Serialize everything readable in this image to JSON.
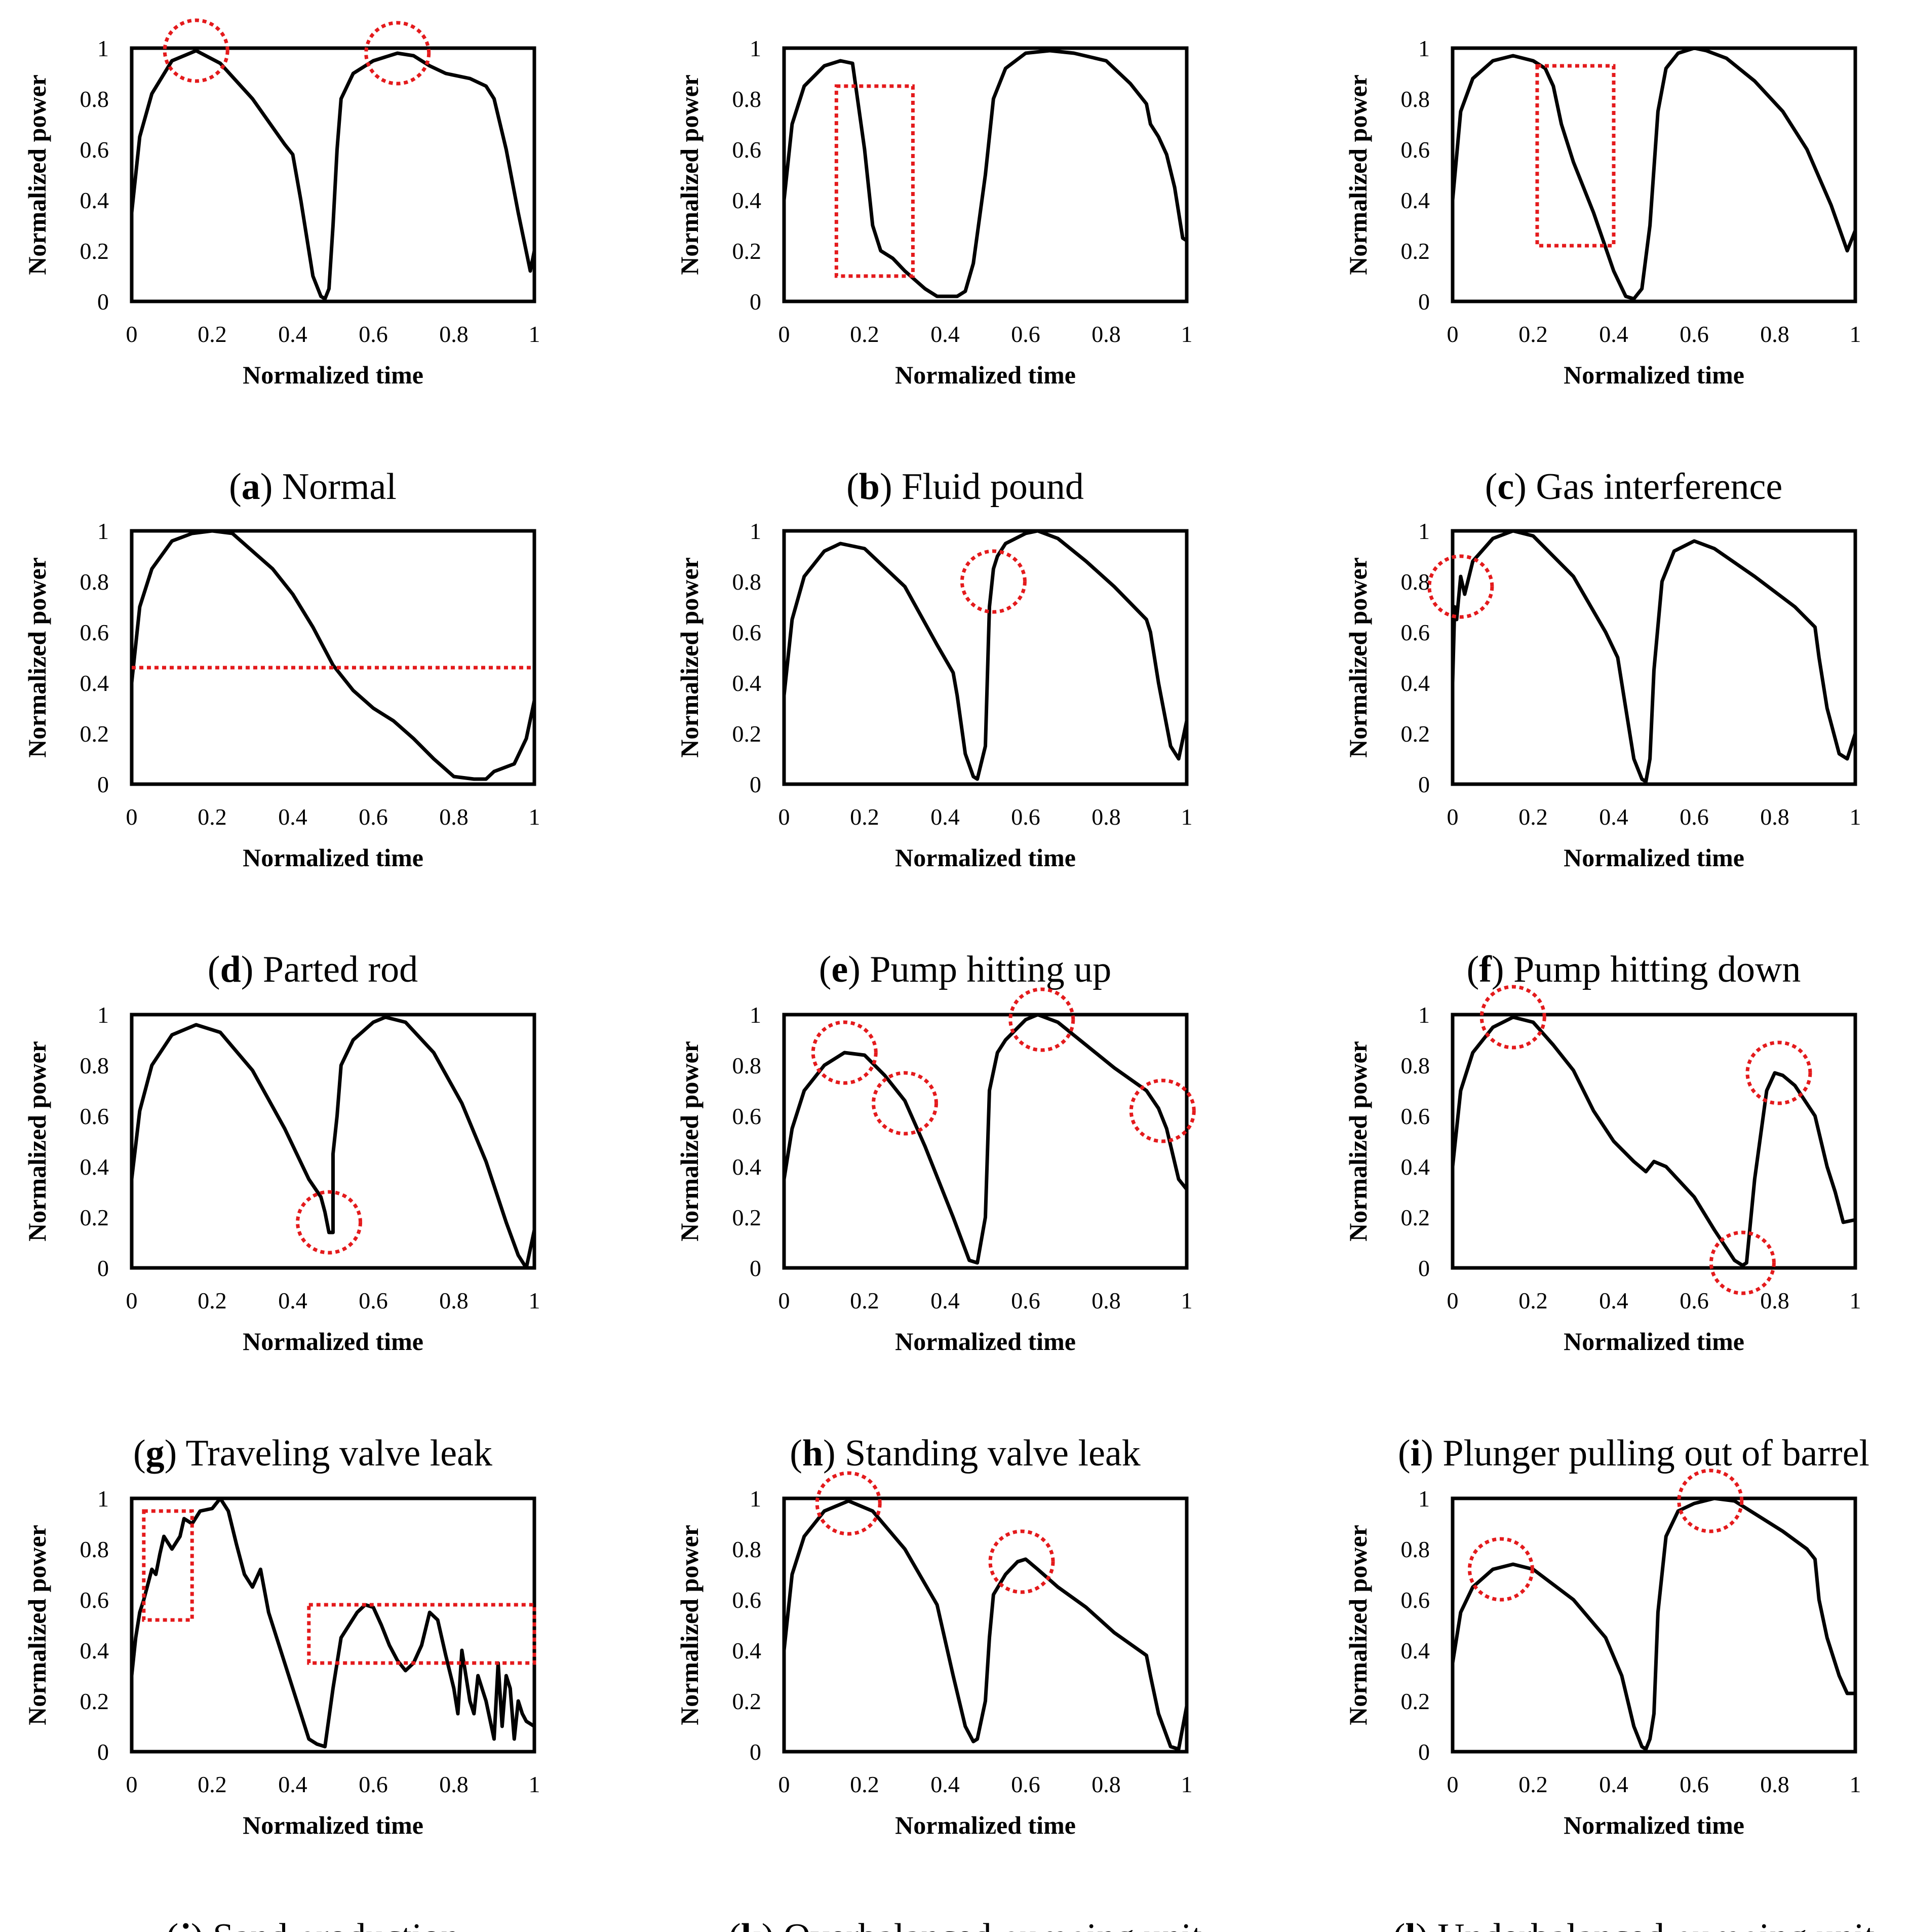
{
  "figure": {
    "x_label": "Normalized time",
    "y_label": "Normalized power",
    "x_ticks": [
      "0",
      "0.2",
      "0.4",
      "0.6",
      "0.8",
      "1"
    ],
    "y_ticks": [
      "0",
      "0.2",
      "0.4",
      "0.6",
      "0.8",
      "1"
    ],
    "line_color": "#000000",
    "highlight_color": "#e41a1c"
  },
  "chart_data": [
    {
      "type": "line",
      "id": "a",
      "caption_letter": "a",
      "caption_text": "Normal",
      "xlabel": "Normalized time",
      "ylabel": "Normalized power",
      "xlim": [
        0,
        1
      ],
      "ylim": [
        0,
        1
      ],
      "x": [
        0,
        0.02,
        0.05,
        0.1,
        0.16,
        0.22,
        0.3,
        0.38,
        0.4,
        0.42,
        0.45,
        0.47,
        0.48,
        0.49,
        0.5,
        0.51,
        0.52,
        0.55,
        0.6,
        0.66,
        0.7,
        0.74,
        0.78,
        0.84,
        0.88,
        0.9,
        0.93,
        0.96,
        0.99,
        1
      ],
      "y": [
        0.35,
        0.65,
        0.82,
        0.95,
        0.99,
        0.94,
        0.8,
        0.62,
        0.58,
        0.4,
        0.1,
        0.02,
        0.01,
        0.05,
        0.3,
        0.6,
        0.8,
        0.9,
        0.95,
        0.98,
        0.97,
        0.93,
        0.9,
        0.88,
        0.85,
        0.8,
        0.6,
        0.35,
        0.12,
        0.2
      ],
      "highlights": [
        {
          "shape": "circle",
          "x": 0.16,
          "y": 0.99
        },
        {
          "shape": "circle",
          "x": 0.66,
          "y": 0.98
        }
      ]
    },
    {
      "type": "line",
      "id": "b",
      "caption_letter": "b",
      "caption_text": "Fluid pound",
      "xlabel": "Normalized time",
      "ylabel": "Normalized power",
      "xlim": [
        0,
        1
      ],
      "ylim": [
        0,
        1
      ],
      "x": [
        0,
        0.02,
        0.05,
        0.1,
        0.14,
        0.17,
        0.2,
        0.22,
        0.24,
        0.27,
        0.3,
        0.35,
        0.38,
        0.4,
        0.43,
        0.45,
        0.47,
        0.5,
        0.52,
        0.55,
        0.6,
        0.66,
        0.72,
        0.8,
        0.86,
        0.9,
        0.91,
        0.93,
        0.95,
        0.97,
        0.99,
        1
      ],
      "y": [
        0.4,
        0.7,
        0.85,
        0.93,
        0.95,
        0.94,
        0.6,
        0.3,
        0.2,
        0.17,
        0.12,
        0.05,
        0.02,
        0.02,
        0.02,
        0.04,
        0.15,
        0.5,
        0.8,
        0.92,
        0.98,
        0.99,
        0.98,
        0.95,
        0.86,
        0.78,
        0.7,
        0.65,
        0.58,
        0.45,
        0.25,
        0.24
      ],
      "highlights": [
        {
          "shape": "rect",
          "x0": 0.13,
          "x1": 0.32,
          "y0": 0.1,
          "y1": 0.85
        }
      ]
    },
    {
      "type": "line",
      "id": "c",
      "caption_letter": "c",
      "caption_text": "Gas interference",
      "xlabel": "Normalized time",
      "ylabel": "Normalized power",
      "xlim": [
        0,
        1
      ],
      "ylim": [
        0,
        1
      ],
      "x": [
        0,
        0.02,
        0.05,
        0.1,
        0.15,
        0.2,
        0.23,
        0.25,
        0.27,
        0.3,
        0.35,
        0.4,
        0.43,
        0.45,
        0.47,
        0.49,
        0.51,
        0.53,
        0.56,
        0.6,
        0.63,
        0.68,
        0.75,
        0.82,
        0.88,
        0.94,
        0.98,
        1
      ],
      "y": [
        0.4,
        0.75,
        0.88,
        0.95,
        0.97,
        0.95,
        0.92,
        0.85,
        0.7,
        0.55,
        0.35,
        0.12,
        0.02,
        0.01,
        0.05,
        0.3,
        0.75,
        0.92,
        0.98,
        1.0,
        0.99,
        0.96,
        0.87,
        0.75,
        0.6,
        0.38,
        0.2,
        0.28
      ],
      "highlights": [
        {
          "shape": "rect",
          "x0": 0.21,
          "x1": 0.4,
          "y0": 0.22,
          "y1": 0.93
        }
      ]
    },
    {
      "type": "line",
      "id": "d",
      "caption_letter": "d",
      "caption_text": "Parted rod",
      "xlabel": "Normalized time",
      "ylabel": "Normalized power",
      "xlim": [
        0,
        1
      ],
      "ylim": [
        0,
        1
      ],
      "x": [
        0,
        0.02,
        0.05,
        0.1,
        0.15,
        0.2,
        0.25,
        0.3,
        0.35,
        0.4,
        0.45,
        0.5,
        0.55,
        0.6,
        0.65,
        0.7,
        0.75,
        0.8,
        0.85,
        0.88,
        0.9,
        0.95,
        0.98,
        1
      ],
      "y": [
        0.4,
        0.7,
        0.85,
        0.96,
        0.99,
        1.0,
        0.99,
        0.92,
        0.85,
        0.75,
        0.62,
        0.47,
        0.37,
        0.3,
        0.25,
        0.18,
        0.1,
        0.03,
        0.02,
        0.02,
        0.05,
        0.08,
        0.18,
        0.33
      ],
      "highlights": [
        {
          "shape": "hline",
          "y": 0.46
        }
      ]
    },
    {
      "type": "line",
      "id": "e",
      "caption_letter": "e",
      "caption_text": "Pump hitting up",
      "xlabel": "Normalized time",
      "ylabel": "Normalized power",
      "xlim": [
        0,
        1
      ],
      "ylim": [
        0,
        1
      ],
      "x": [
        0,
        0.02,
        0.05,
        0.1,
        0.14,
        0.2,
        0.3,
        0.38,
        0.42,
        0.43,
        0.45,
        0.47,
        0.48,
        0.5,
        0.51,
        0.52,
        0.53,
        0.55,
        0.6,
        0.63,
        0.68,
        0.75,
        0.82,
        0.9,
        0.91,
        0.93,
        0.96,
        0.98,
        1
      ],
      "y": [
        0.35,
        0.65,
        0.82,
        0.92,
        0.95,
        0.93,
        0.78,
        0.55,
        0.44,
        0.35,
        0.12,
        0.03,
        0.02,
        0.15,
        0.7,
        0.85,
        0.9,
        0.95,
        0.99,
        1.0,
        0.97,
        0.88,
        0.78,
        0.65,
        0.6,
        0.4,
        0.15,
        0.1,
        0.25
      ],
      "highlights": [
        {
          "shape": "circle",
          "x": 0.52,
          "y": 0.8
        }
      ]
    },
    {
      "type": "line",
      "id": "f",
      "caption_letter": "f",
      "caption_text": "Pump hitting down",
      "xlabel": "Normalized time",
      "ylabel": "Normalized power",
      "xlim": [
        0,
        1
      ],
      "ylim": [
        0,
        1
      ],
      "x": [
        0,
        0.005,
        0.01,
        0.02,
        0.03,
        0.05,
        0.1,
        0.15,
        0.2,
        0.3,
        0.38,
        0.41,
        0.43,
        0.45,
        0.47,
        0.48,
        0.49,
        0.5,
        0.52,
        0.55,
        0.6,
        0.65,
        0.75,
        0.85,
        0.9,
        0.91,
        0.93,
        0.96,
        0.98,
        1
      ],
      "y": [
        0.4,
        0.7,
        0.65,
        0.82,
        0.75,
        0.88,
        0.97,
        1.0,
        0.98,
        0.82,
        0.6,
        0.5,
        0.3,
        0.1,
        0.02,
        0.01,
        0.1,
        0.45,
        0.8,
        0.92,
        0.96,
        0.93,
        0.82,
        0.7,
        0.62,
        0.5,
        0.3,
        0.12,
        0.1,
        0.2
      ],
      "highlights": [
        {
          "shape": "circle",
          "x": 0.02,
          "y": 0.78
        }
      ]
    },
    {
      "type": "line",
      "id": "g",
      "caption_letter": "g",
      "caption_text": "Traveling valve leak",
      "xlabel": "Normalized time",
      "ylabel": "Normalized power",
      "xlim": [
        0,
        1
      ],
      "ylim": [
        0,
        1
      ],
      "x": [
        0,
        0.02,
        0.05,
        0.1,
        0.16,
        0.22,
        0.3,
        0.38,
        0.44,
        0.47,
        0.48,
        0.49,
        0.5,
        0.5,
        0.51,
        0.52,
        0.55,
        0.6,
        0.63,
        0.68,
        0.75,
        0.82,
        0.88,
        0.93,
        0.96,
        0.98,
        1
      ],
      "y": [
        0.35,
        0.62,
        0.8,
        0.92,
        0.96,
        0.93,
        0.78,
        0.55,
        0.35,
        0.28,
        0.22,
        0.14,
        0.14,
        0.45,
        0.6,
        0.8,
        0.9,
        0.97,
        0.99,
        0.97,
        0.85,
        0.65,
        0.42,
        0.18,
        0.05,
        0.0,
        0.15
      ],
      "highlights": [
        {
          "shape": "circle",
          "x": 0.49,
          "y": 0.18
        }
      ]
    },
    {
      "type": "line",
      "id": "h",
      "caption_letter": "h",
      "caption_text": "Standing valve leak",
      "xlabel": "Normalized time",
      "ylabel": "Normalized power",
      "xlim": [
        0,
        1
      ],
      "ylim": [
        0,
        1
      ],
      "x": [
        0,
        0.02,
        0.05,
        0.1,
        0.15,
        0.2,
        0.25,
        0.3,
        0.35,
        0.42,
        0.46,
        0.48,
        0.5,
        0.51,
        0.53,
        0.55,
        0.6,
        0.63,
        0.68,
        0.75,
        0.82,
        0.9,
        0.93,
        0.95,
        0.98,
        1
      ],
      "y": [
        0.35,
        0.55,
        0.7,
        0.8,
        0.85,
        0.84,
        0.76,
        0.66,
        0.48,
        0.2,
        0.03,
        0.02,
        0.2,
        0.7,
        0.85,
        0.9,
        0.98,
        1.0,
        0.97,
        0.88,
        0.79,
        0.7,
        0.63,
        0.55,
        0.35,
        0.31
      ],
      "highlights": [
        {
          "shape": "circle",
          "x": 0.15,
          "y": 0.85
        },
        {
          "shape": "circle",
          "x": 0.3,
          "y": 0.65
        },
        {
          "shape": "circle",
          "x": 0.64,
          "y": 0.98
        },
        {
          "shape": "circle",
          "x": 0.94,
          "y": 0.62
        }
      ]
    },
    {
      "type": "line",
      "id": "i",
      "caption_letter": "i",
      "caption_text": "Plunger pulling out of barrel",
      "xlabel": "Normalized time",
      "ylabel": "Normalized power",
      "xlim": [
        0,
        1
      ],
      "ylim": [
        0,
        1
      ],
      "x": [
        0,
        0.02,
        0.05,
        0.1,
        0.15,
        0.2,
        0.25,
        0.3,
        0.35,
        0.4,
        0.45,
        0.48,
        0.5,
        0.53,
        0.6,
        0.65,
        0.7,
        0.72,
        0.73,
        0.75,
        0.78,
        0.8,
        0.82,
        0.85,
        0.9,
        0.93,
        0.95,
        0.97,
        1
      ],
      "y": [
        0.4,
        0.7,
        0.85,
        0.95,
        0.99,
        0.97,
        0.88,
        0.78,
        0.62,
        0.5,
        0.42,
        0.38,
        0.42,
        0.4,
        0.28,
        0.15,
        0.03,
        0.01,
        0.02,
        0.35,
        0.7,
        0.77,
        0.76,
        0.72,
        0.6,
        0.4,
        0.3,
        0.18,
        0.19
      ],
      "highlights": [
        {
          "shape": "circle",
          "x": 0.15,
          "y": 0.99
        },
        {
          "shape": "circle",
          "x": 0.81,
          "y": 0.77
        },
        {
          "shape": "circle",
          "x": 0.72,
          "y": 0.02
        }
      ]
    },
    {
      "type": "line",
      "id": "j",
      "caption_letter": "j",
      "caption_text": "Sand production",
      "xlabel": "Normalized time",
      "ylabel": "Normalized power",
      "xlim": [
        0,
        1
      ],
      "ylim": [
        0,
        1
      ],
      "x": [
        0,
        0.01,
        0.02,
        0.03,
        0.05,
        0.06,
        0.07,
        0.08,
        0.1,
        0.12,
        0.13,
        0.15,
        0.17,
        0.2,
        0.22,
        0.24,
        0.26,
        0.28,
        0.3,
        0.32,
        0.34,
        0.36,
        0.38,
        0.4,
        0.42,
        0.44,
        0.46,
        0.48,
        0.5,
        0.52,
        0.54,
        0.56,
        0.58,
        0.6,
        0.62,
        0.64,
        0.66,
        0.68,
        0.7,
        0.72,
        0.74,
        0.76,
        0.78,
        0.8,
        0.81,
        0.82,
        0.84,
        0.85,
        0.86,
        0.88,
        0.9,
        0.91,
        0.92,
        0.93,
        0.94,
        0.95,
        0.96,
        0.97,
        0.98,
        1
      ],
      "y": [
        0.3,
        0.45,
        0.55,
        0.6,
        0.72,
        0.7,
        0.78,
        0.85,
        0.8,
        0.85,
        0.92,
        0.9,
        0.95,
        0.96,
        1.0,
        0.95,
        0.82,
        0.7,
        0.65,
        0.72,
        0.55,
        0.45,
        0.35,
        0.25,
        0.15,
        0.05,
        0.03,
        0.02,
        0.25,
        0.45,
        0.5,
        0.55,
        0.58,
        0.57,
        0.5,
        0.42,
        0.36,
        0.32,
        0.35,
        0.42,
        0.55,
        0.52,
        0.38,
        0.25,
        0.15,
        0.4,
        0.2,
        0.15,
        0.3,
        0.2,
        0.05,
        0.35,
        0.1,
        0.3,
        0.25,
        0.05,
        0.2,
        0.15,
        0.12,
        0.1
      ],
      "highlights": [
        {
          "shape": "rect",
          "x0": 0.03,
          "x1": 0.15,
          "y0": 0.52,
          "y1": 0.95
        },
        {
          "shape": "rect",
          "x0": 0.44,
          "x1": 1.0,
          "y0": 0.35,
          "y1": 0.58
        }
      ]
    },
    {
      "type": "line",
      "id": "k",
      "caption_letter": "k",
      "caption_text": "Overbalanced pumping unit",
      "xlabel": "Normalized time",
      "ylabel": "Normalized power",
      "xlim": [
        0,
        1
      ],
      "ylim": [
        0,
        1
      ],
      "x": [
        0,
        0.02,
        0.05,
        0.1,
        0.16,
        0.22,
        0.3,
        0.38,
        0.42,
        0.45,
        0.47,
        0.48,
        0.5,
        0.51,
        0.52,
        0.55,
        0.58,
        0.6,
        0.63,
        0.68,
        0.75,
        0.82,
        0.9,
        0.91,
        0.93,
        0.96,
        0.98,
        1
      ],
      "y": [
        0.4,
        0.7,
        0.85,
        0.95,
        0.99,
        0.95,
        0.8,
        0.58,
        0.3,
        0.1,
        0.04,
        0.05,
        0.2,
        0.45,
        0.62,
        0.7,
        0.75,
        0.76,
        0.72,
        0.65,
        0.57,
        0.47,
        0.38,
        0.3,
        0.15,
        0.02,
        0.01,
        0.18
      ],
      "highlights": [
        {
          "shape": "circle",
          "x": 0.16,
          "y": 0.98
        },
        {
          "shape": "circle",
          "x": 0.59,
          "y": 0.75
        }
      ]
    },
    {
      "type": "line",
      "id": "l",
      "caption_letter": "l",
      "caption_text": "Underbalanced pumping unit",
      "xlabel": "Normalized time",
      "ylabel": "Normalized power",
      "xlim": [
        0,
        1
      ],
      "ylim": [
        0,
        1
      ],
      "x": [
        0,
        0.02,
        0.05,
        0.1,
        0.15,
        0.2,
        0.3,
        0.38,
        0.42,
        0.45,
        0.47,
        0.48,
        0.49,
        0.5,
        0.51,
        0.53,
        0.56,
        0.6,
        0.65,
        0.7,
        0.75,
        0.82,
        0.88,
        0.9,
        0.91,
        0.93,
        0.96,
        0.98,
        1
      ],
      "y": [
        0.35,
        0.55,
        0.65,
        0.72,
        0.74,
        0.72,
        0.6,
        0.45,
        0.3,
        0.1,
        0.02,
        0.01,
        0.05,
        0.15,
        0.55,
        0.85,
        0.95,
        0.98,
        1.0,
        0.99,
        0.94,
        0.87,
        0.8,
        0.76,
        0.6,
        0.45,
        0.3,
        0.23,
        0.23
      ],
      "highlights": [
        {
          "shape": "circle",
          "x": 0.12,
          "y": 0.72
        },
        {
          "shape": "circle",
          "x": 0.64,
          "y": 0.99
        }
      ]
    }
  ]
}
